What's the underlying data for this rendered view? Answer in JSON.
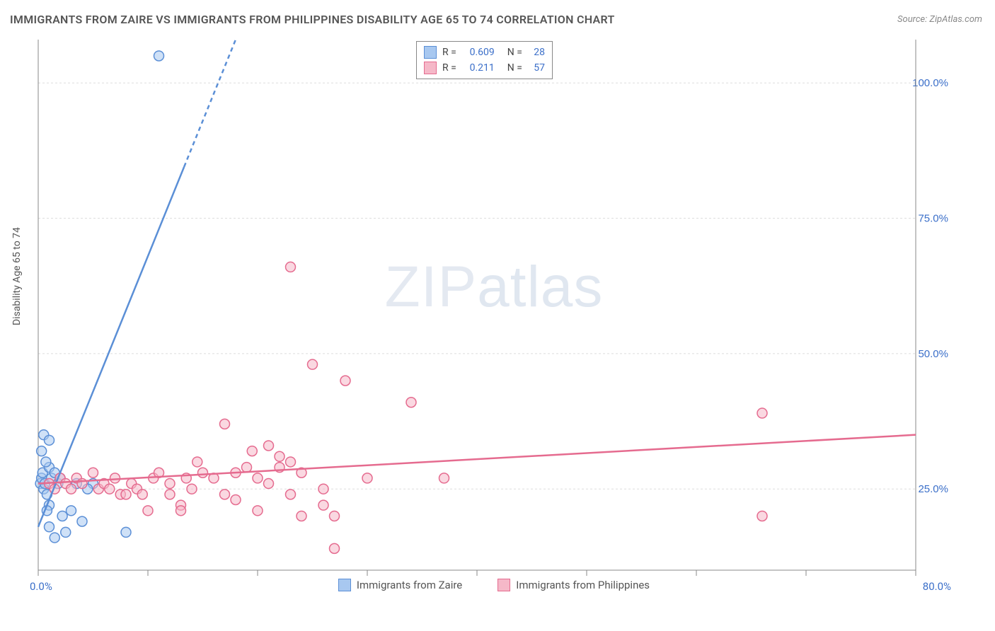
{
  "title": "IMMIGRANTS FROM ZAIRE VS IMMIGRANTS FROM PHILIPPINES DISABILITY AGE 65 TO 74 CORRELATION CHART",
  "source": "Source: ZipAtlas.com",
  "ylabel": "Disability Age 65 to 74",
  "watermark_bold": "ZIP",
  "watermark_thin": "atlas",
  "chart": {
    "type": "scatter",
    "background_color": "#ffffff",
    "grid_color": "#dddddd",
    "axis_color": "#888888",
    "xlim": [
      0,
      80
    ],
    "ylim": [
      10,
      108
    ],
    "y_ticks": [
      25,
      50,
      75,
      100
    ],
    "y_tick_labels": [
      "25.0%",
      "50.0%",
      "75.0%",
      "100.0%"
    ],
    "x_ticks": [
      0,
      10,
      20,
      30,
      40,
      50,
      60,
      70,
      80
    ],
    "x_axis_start_label": "0.0%",
    "x_axis_end_label": "80.0%",
    "marker_radius": 7,
    "marker_stroke_width": 1.5,
    "trend_line_width": 2.5,
    "series": [
      {
        "name": "Immigrants from Zaire",
        "fill_color": "#a8c8f0",
        "stroke_color": "#5b8fd6",
        "fill_opacity": 0.55,
        "r_value": "0.609",
        "n_value": "28",
        "trend": {
          "x1": 0,
          "y1": 18,
          "x2": 18,
          "y2": 108,
          "dash_from_x": 13.3
        },
        "points": [
          [
            0.2,
            26
          ],
          [
            0.3,
            27
          ],
          [
            0.5,
            25
          ],
          [
            0.4,
            28
          ],
          [
            0.6,
            26
          ],
          [
            0.8,
            24
          ],
          [
            0.5,
            35
          ],
          [
            1.0,
            29
          ],
          [
            1.2,
            27
          ],
          [
            0.7,
            30
          ],
          [
            1.5,
            28
          ],
          [
            0.3,
            32
          ],
          [
            1.0,
            34
          ],
          [
            1.8,
            26
          ],
          [
            2.0,
            27
          ],
          [
            2.2,
            20
          ],
          [
            3.0,
            21
          ],
          [
            3.5,
            26
          ],
          [
            4.0,
            19
          ],
          [
            1.0,
            18
          ],
          [
            2.5,
            17
          ],
          [
            1.5,
            16
          ],
          [
            1.0,
            22
          ],
          [
            0.8,
            21
          ],
          [
            8.0,
            17
          ],
          [
            5.0,
            26
          ],
          [
            4.5,
            25
          ],
          [
            11,
            105
          ]
        ]
      },
      {
        "name": "Immigrants from Philippines",
        "fill_color": "#f5b8c8",
        "stroke_color": "#e56b8f",
        "fill_opacity": 0.55,
        "r_value": "0.211",
        "n_value": "57",
        "trend": {
          "x1": 0,
          "y1": 26,
          "x2": 80,
          "y2": 35
        },
        "points": [
          [
            1,
            26
          ],
          [
            1.5,
            25
          ],
          [
            2,
            27
          ],
          [
            2.5,
            26
          ],
          [
            3,
            25
          ],
          [
            3.5,
            27
          ],
          [
            4,
            26
          ],
          [
            5,
            28
          ],
          [
            5.5,
            25
          ],
          [
            6,
            26
          ],
          [
            6.5,
            25
          ],
          [
            7,
            27
          ],
          [
            7.5,
            24
          ],
          [
            8,
            24
          ],
          [
            8.5,
            26
          ],
          [
            9,
            25
          ],
          [
            9.5,
            24
          ],
          [
            10,
            21
          ],
          [
            10.5,
            27
          ],
          [
            11,
            28
          ],
          [
            12,
            26
          ],
          [
            12,
            24
          ],
          [
            13,
            22
          ],
          [
            13.5,
            27
          ],
          [
            14,
            25
          ],
          [
            14.5,
            30
          ],
          [
            15,
            28
          ],
          [
            16,
            27
          ],
          [
            17,
            37
          ],
          [
            17,
            24
          ],
          [
            18,
            23
          ],
          [
            18,
            28
          ],
          [
            19,
            29
          ],
          [
            19.5,
            32
          ],
          [
            20,
            27
          ],
          [
            20,
            21
          ],
          [
            21,
            33
          ],
          [
            21,
            26
          ],
          [
            22,
            29
          ],
          [
            22,
            31
          ],
          [
            23,
            30
          ],
          [
            23,
            24
          ],
          [
            24,
            20
          ],
          [
            24,
            28
          ],
          [
            25,
            48
          ],
          [
            26,
            25
          ],
          [
            26,
            22
          ],
          [
            27,
            14
          ],
          [
            27,
            20
          ],
          [
            28,
            45
          ],
          [
            30,
            27
          ],
          [
            23,
            66
          ],
          [
            34,
            41
          ],
          [
            37,
            27
          ],
          [
            66,
            39
          ],
          [
            66,
            20
          ],
          [
            13,
            21
          ]
        ]
      }
    ]
  },
  "stats_legend": {
    "r_label": "R =",
    "n_label": "N ="
  },
  "bottom_legend": {
    "items": [
      "Immigrants from Zaire",
      "Immigrants from Philippines"
    ]
  }
}
